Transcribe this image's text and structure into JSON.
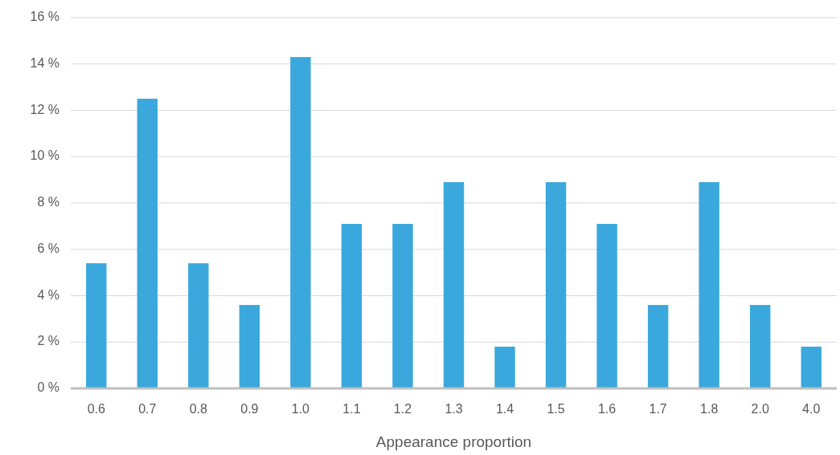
{
  "chart_data": {
    "type": "bar",
    "xlabel": "Appearance proportion",
    "categories": [
      "0.6",
      "0.7",
      "0.8",
      "0.9",
      "1.0",
      "1.1",
      "1.2",
      "1.3",
      "1.4",
      "1.5",
      "1.6",
      "1.7",
      "1.8",
      "2.0",
      "4.0"
    ],
    "values": [
      5.4,
      12.5,
      5.4,
      3.6,
      14.3,
      7.1,
      7.1,
      8.9,
      1.8,
      8.9,
      7.1,
      3.6,
      8.9,
      3.6,
      1.8
    ],
    "color": "#3aa8dc",
    "ylim": [
      0,
      16
    ],
    "yticks": [
      {
        "value": 0,
        "label": "0 %"
      },
      {
        "value": 2,
        "label": "2 %"
      },
      {
        "value": 4,
        "label": "4 %"
      },
      {
        "value": 6,
        "label": "6 %"
      },
      {
        "value": 8,
        "label": "8 %"
      },
      {
        "value": 10,
        "label": "10 %"
      },
      {
        "value": 12,
        "label": "12 %"
      },
      {
        "value": 14,
        "label": "14 %"
      },
      {
        "value": 16,
        "label": "16 %"
      }
    ],
    "grid": "y"
  }
}
